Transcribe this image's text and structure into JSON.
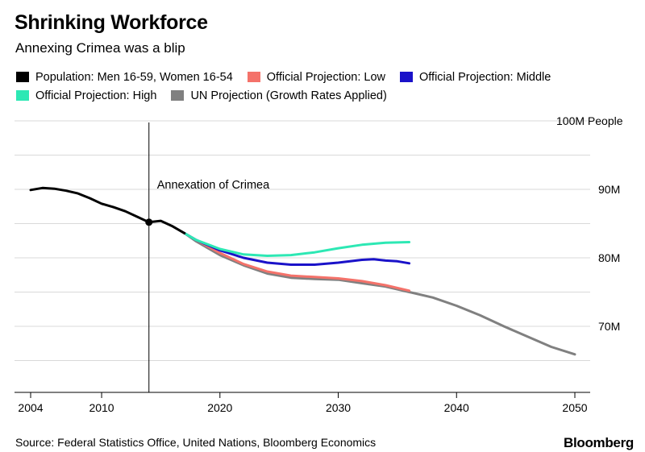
{
  "title": "Shrinking Workforce",
  "subtitle": "Annexing Crimea was a blip",
  "legend": [
    {
      "label": "Population: Men 16-59, Women 16-54",
      "color": "#000000"
    },
    {
      "label": "Official Projection: Low",
      "color": "#f4726a"
    },
    {
      "label": "Official Projection: Middle",
      "color": "#1a12c9"
    },
    {
      "label": "Official Projection: High",
      "color": "#2de8b4"
    },
    {
      "label": "UN Projection (Growth Rates Applied)",
      "color": "#808080"
    }
  ],
  "source": "Source: Federal Statistics Office, United Nations, Bloomberg Economics",
  "brand": "Bloomberg",
  "chart_data": {
    "type": "line",
    "ylabel": "100M People",
    "xlim": [
      2004,
      2050
    ],
    "ylim": [
      65,
      100
    ],
    "x_ticks": [
      2004,
      2010,
      2020,
      2030,
      2040,
      2050
    ],
    "y_ticks": [
      {
        "value": 90,
        "label": "90M"
      },
      {
        "value": 80,
        "label": "80M"
      },
      {
        "value": 70,
        "label": "70M"
      }
    ],
    "annotation": {
      "x": 2014,
      "text": "Annexation of Crimea"
    },
    "marker_point": {
      "x": 2014,
      "y": 85.2
    },
    "grid": "horizontal",
    "series": [
      {
        "name": "Population: Men 16-59, Women 16-54",
        "color": "#000000",
        "x": [
          2004,
          2005,
          2006,
          2007,
          2008,
          2009,
          2010,
          2011,
          2012,
          2013,
          2014,
          2015,
          2016,
          2017
        ],
        "y": [
          89.9,
          90.2,
          90.1,
          89.8,
          89.4,
          88.7,
          87.9,
          87.4,
          86.8,
          86.0,
          85.2,
          85.4,
          84.6,
          83.6
        ]
      },
      {
        "name": "Official Projection: Low",
        "color": "#f4726a",
        "x": [
          2017,
          2018,
          2020,
          2022,
          2024,
          2026,
          2028,
          2030,
          2032,
          2034,
          2036
        ],
        "y": [
          83.6,
          82.6,
          80.7,
          79.1,
          78.0,
          77.4,
          77.2,
          77.0,
          76.6,
          76.0,
          75.2
        ]
      },
      {
        "name": "Official Projection: Middle",
        "color": "#1a12c9",
        "x": [
          2017,
          2018,
          2020,
          2022,
          2024,
          2026,
          2028,
          2030,
          2031,
          2032,
          2033,
          2034,
          2035,
          2036
        ],
        "y": [
          83.6,
          82.6,
          81.1,
          80.0,
          79.3,
          79.0,
          79.0,
          79.3,
          79.5,
          79.7,
          79.8,
          79.6,
          79.5,
          79.2
        ]
      },
      {
        "name": "Official Projection: High",
        "color": "#2de8b4",
        "x": [
          2017,
          2018,
          2020,
          2022,
          2024,
          2026,
          2028,
          2030,
          2032,
          2034,
          2036
        ],
        "y": [
          83.6,
          82.6,
          81.3,
          80.5,
          80.3,
          80.4,
          80.8,
          81.4,
          81.9,
          82.2,
          82.3
        ]
      },
      {
        "name": "UN Projection (Growth Rates Applied)",
        "color": "#808080",
        "x": [
          2017,
          2018,
          2020,
          2022,
          2024,
          2026,
          2028,
          2030,
          2032,
          2034,
          2036,
          2038,
          2040,
          2042,
          2044,
          2046,
          2048,
          2050
        ],
        "y": [
          83.6,
          82.4,
          80.4,
          78.9,
          77.7,
          77.1,
          76.9,
          76.8,
          76.3,
          75.8,
          75.0,
          74.2,
          73.0,
          71.6,
          70.0,
          68.5,
          67.0,
          65.9
        ]
      }
    ]
  }
}
